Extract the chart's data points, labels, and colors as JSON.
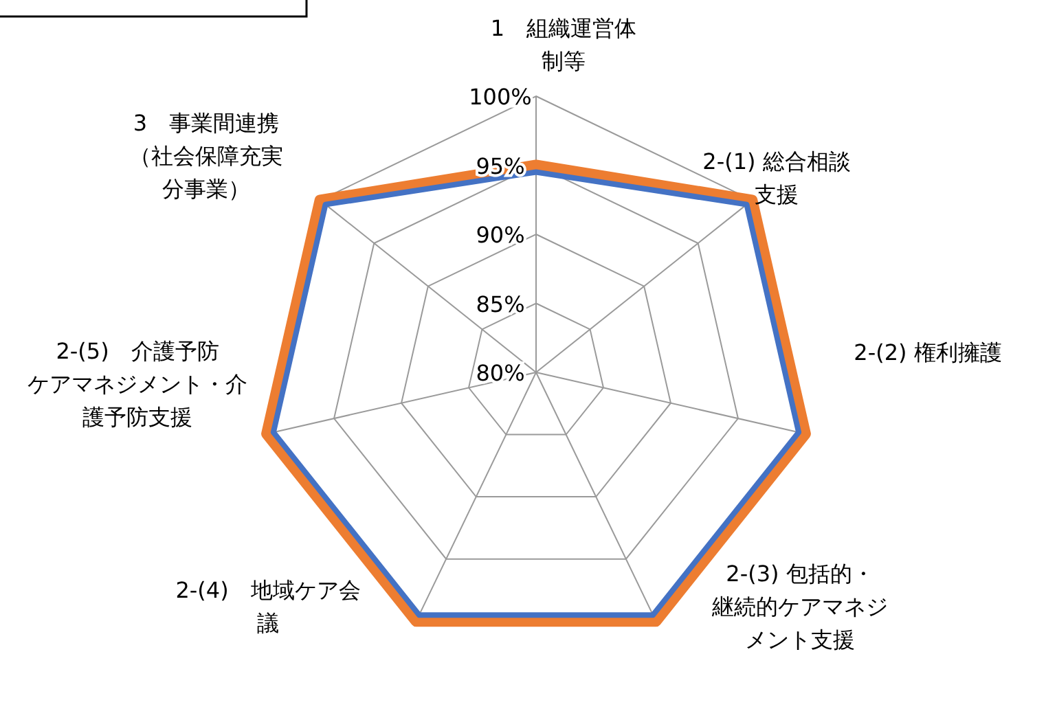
{
  "chart_data": {
    "type": "radar",
    "categories": [
      "1　組織運営体制等",
      "2-(1) 総合相談支援",
      "2-(2) 権利擁護",
      "2-(3) 包括的・継続的ケアマネジメント支援",
      "2-(4)　地域ケア会議",
      "2-(5)　介護予防ケアマネジメント・介護予防支援",
      "3　事業間連携（社会保障充実分事業）"
    ],
    "series": [
      {
        "color": "#ed7d31",
        "values": [
          95,
          100,
          100,
          100,
          100,
          100,
          100
        ]
      },
      {
        "color": "#4472c4",
        "values": [
          94.5,
          99.5,
          99.5,
          99.5,
          99.5,
          99.5,
          99.5
        ]
      }
    ],
    "ylim": [
      80,
      100
    ],
    "yticks": [
      {
        "value": 80,
        "label": "80%"
      },
      {
        "value": 85,
        "label": "85%"
      },
      {
        "value": 90,
        "label": "90%"
      },
      {
        "value": 95,
        "label": "95%"
      },
      {
        "value": 100,
        "label": "100%"
      }
    ],
    "grid": true
  }
}
